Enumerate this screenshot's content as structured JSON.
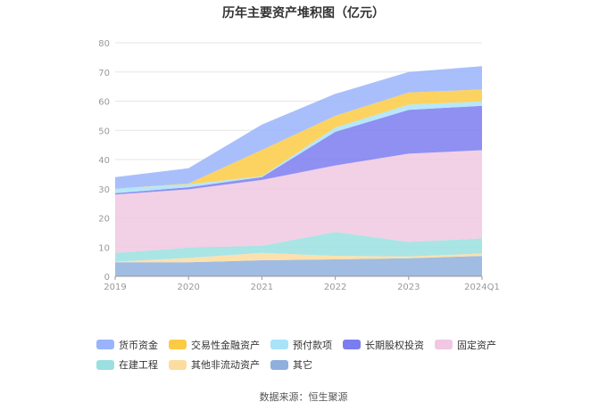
{
  "chart_data": {
    "type": "area",
    "title": "历年主要资产堆积图（亿元）",
    "categories": [
      "2019",
      "2020",
      "2021",
      "2022",
      "2023",
      "2024Q1"
    ],
    "y_ticks": [
      "0",
      "10",
      "20",
      "30",
      "40",
      "50",
      "60",
      "70",
      "80"
    ],
    "ylim": [
      0,
      80
    ],
    "stacked": true,
    "grid": true,
    "legend_position": "bottom-left",
    "series": [
      {
        "name": "其它",
        "color": "#8fb0dd",
        "values": [
          4.8,
          4.8,
          5.5,
          5.8,
          6.2,
          7.0
        ]
      },
      {
        "name": "其他非流动资产",
        "color": "#fcdca0",
        "values": [
          0.2,
          1.5,
          2.5,
          1.2,
          0.6,
          0.8
        ]
      },
      {
        "name": "在建工程",
        "color": "#9be0e0",
        "values": [
          3.0,
          3.5,
          2.5,
          8.2,
          5.0,
          5.2
        ]
      },
      {
        "name": "固定资产",
        "color": "#f0c8e2",
        "values": [
          20.0,
          20.0,
          22.5,
          22.8,
          30.2,
          30.2
        ]
      },
      {
        "name": "长期股权投资",
        "color": "#7b7cf0",
        "values": [
          0.5,
          0.7,
          1.0,
          11.5,
          15.0,
          15.2
        ]
      },
      {
        "name": "预付款项",
        "color": "#a9e3f9",
        "values": [
          1.5,
          1.0,
          0.3,
          1.5,
          1.8,
          1.5
        ]
      },
      {
        "name": "交易性金融资产",
        "color": "#fccb44",
        "values": [
          0.0,
          0.3,
          9.0,
          4.0,
          4.2,
          4.1
        ]
      },
      {
        "name": "货币资金",
        "color": "#9ab4fc",
        "values": [
          4.0,
          5.2,
          8.7,
          7.5,
          7.0,
          8.0
        ]
      }
    ],
    "legend_order": [
      "货币资金",
      "交易性金融资产",
      "预付款项",
      "长期股权投资",
      "固定资产",
      "在建工程",
      "其他非流动资产",
      "其它"
    ]
  },
  "source": "数据来源：恒生聚源",
  "colors": {
    "grid": "#e6e6e6",
    "axis": "#999999",
    "tick_text": "#999999"
  }
}
